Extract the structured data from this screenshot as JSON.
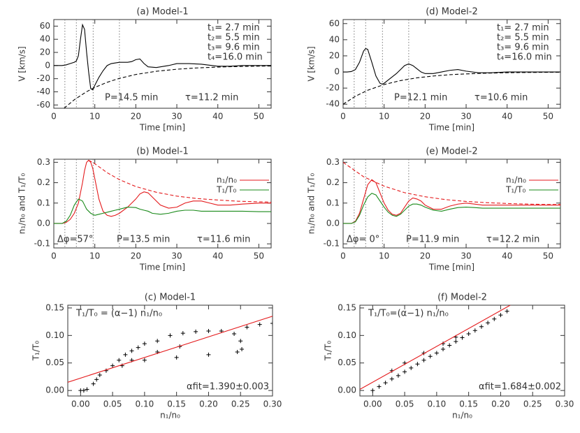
{
  "chart_data": [
    {
      "type": "line",
      "title": "(a) Model-1",
      "xlabel": "Time [min]",
      "ylabel": "V [km/s]",
      "xlim": [
        0,
        53
      ],
      "ylim": [
        -65,
        70
      ],
      "xticks": [
        0,
        10,
        20,
        30,
        40,
        50
      ],
      "yticks": [
        -60,
        -40,
        -20,
        0,
        20,
        40,
        60
      ],
      "markers": [
        2.7,
        5.5,
        9.6,
        16.0
      ],
      "series": [
        {
          "color": "#000000",
          "dash": false,
          "x": [
            0,
            1,
            2,
            3,
            4,
            5,
            5.5,
            6,
            6.5,
            7,
            7.5,
            8,
            8.5,
            9,
            9.5,
            10,
            11,
            12,
            13,
            14,
            16,
            18,
            19,
            20,
            21,
            22,
            23,
            25,
            28,
            30,
            33,
            36,
            40,
            43,
            46,
            50,
            53
          ],
          "values": [
            0,
            0,
            0,
            1,
            3,
            5,
            7,
            15,
            40,
            62,
            55,
            20,
            -10,
            -35,
            -37,
            -30,
            -18,
            -8,
            0,
            3,
            5,
            5,
            6,
            9,
            10,
            3,
            -2,
            -3,
            0,
            3,
            3,
            2,
            -1,
            -1,
            0,
            0,
            0
          ]
        },
        {
          "color": "#000000",
          "dash": true,
          "x": [
            2.5,
            5,
            8,
            10,
            13,
            16,
            20,
            25,
            30,
            35,
            40,
            45,
            50,
            53
          ],
          "values": [
            -65,
            -52,
            -39.8,
            -33.3,
            -25.5,
            -19.5,
            -13.6,
            -8.7,
            -5.6,
            -3.6,
            -2.3,
            -1.5,
            -0.9,
            -0.7
          ]
        }
      ],
      "annotations": [
        "t₁= 2.7 min",
        "t₂= 5.5 min",
        "t₃= 9.6 min",
        "t₄=16.0 min",
        "P=14.5 min",
        "τ=11.2 min"
      ]
    },
    {
      "type": "line",
      "title": "(b) Model-1",
      "xlabel": "Time [min]",
      "ylabel": "n₁/n₀ and T₁/T₀",
      "xlim": [
        0,
        53
      ],
      "ylim": [
        -0.12,
        0.315
      ],
      "xticks": [
        0,
        10,
        20,
        30,
        40,
        50
      ],
      "yticks": [
        -0.1,
        {
          "value": 0,
          "label": "0.0"
        },
        0.1,
        0.2,
        0.3
      ],
      "markers": [
        2.7,
        5.5,
        9.6,
        16.0
      ],
      "legend": "top-right",
      "x": [
        0,
        2,
        3,
        4,
        5,
        6,
        7,
        7.5,
        8,
        8.5,
        9,
        9.5,
        10,
        11,
        12,
        13,
        14,
        15,
        16,
        18,
        20,
        21,
        22,
        23,
        24,
        26,
        28,
        30,
        32,
        34,
        36,
        38,
        40,
        43,
        46,
        50,
        53
      ],
      "series": [
        {
          "name": "n₁/n₀",
          "color": "#e41a1c",
          "dash": false,
          "values": [
            0,
            0,
            0.005,
            0.02,
            0.05,
            0.1,
            0.2,
            0.26,
            0.3,
            0.31,
            0.3,
            0.27,
            0.22,
            0.12,
            0.06,
            0.04,
            0.035,
            0.04,
            0.05,
            0.08,
            0.12,
            0.145,
            0.155,
            0.15,
            0.13,
            0.09,
            0.075,
            0.08,
            0.1,
            0.11,
            0.11,
            0.1,
            0.09,
            0.09,
            0.095,
            0.1,
            0.1
          ]
        },
        {
          "name": "T₁/T₀",
          "color": "#1a8a1a",
          "dash": false,
          "values": [
            0,
            0,
            0.01,
            0.04,
            0.09,
            0.12,
            0.11,
            0.09,
            0.07,
            0.06,
            0.05,
            0.045,
            0.04,
            0.045,
            0.05,
            0.055,
            0.06,
            0.065,
            0.07,
            0.08,
            0.078,
            0.07,
            0.065,
            0.06,
            0.05,
            0.045,
            0.05,
            0.06,
            0.065,
            0.065,
            0.06,
            0.06,
            0.06,
            0.06,
            0.06,
            0.058,
            0.058
          ]
        },
        {
          "color": "#e41a1c",
          "dash": true,
          "x": [
            8.5,
            10,
            13,
            16,
            20,
            25,
            30,
            35,
            40,
            45,
            50,
            53
          ],
          "values": [
            0.31,
            0.293,
            0.249,
            0.215,
            0.181,
            0.153,
            0.134,
            0.122,
            0.115,
            0.109,
            0.106,
            0.105
          ]
        }
      ],
      "annotations": [
        "Δφ=57°",
        "P=13.5 min",
        "τ=11.6 min"
      ]
    },
    {
      "type": "scatter",
      "title": "(c) Model-1",
      "xlabel": "n₁/n₀",
      "ylabel": "T₁/T₀",
      "xlim": [
        -0.02,
        0.3
      ],
      "ylim": [
        -0.01,
        0.155
      ],
      "xticks": [
        {
          "value": 0,
          "label": "0.00"
        },
        0.05,
        {
          "value": 0.1,
          "label": "0.10"
        },
        0.15,
        {
          "value": 0.2,
          "label": "0.20"
        },
        0.25,
        {
          "value": 0.3,
          "label": "0.30"
        }
      ],
      "yticks": [
        {
          "value": 0,
          "label": "0.00"
        },
        0.05,
        {
          "value": 0.1,
          "label": "0.10"
        },
        0.15
      ],
      "series": [
        {
          "color": "#000000",
          "mark": "plus",
          "x": [
            0,
            0.005,
            0.01,
            0.02,
            0.025,
            0.03,
            0.04,
            0.05,
            0.06,
            0.07,
            0.08,
            0.09,
            0.1,
            0.12,
            0.14,
            0.16,
            0.18,
            0.2,
            0.22,
            0.24,
            0.25,
            0.252,
            0.245,
            0.2,
            0.15,
            0.1,
            0.065,
            0.08,
            0.12,
            0.155,
            0.26,
            0.28,
            0.3
          ],
          "values": [
            0,
            0,
            0.002,
            0.012,
            0.02,
            0.028,
            0.036,
            0.045,
            0.055,
            0.065,
            0.072,
            0.078,
            0.085,
            0.09,
            0.1,
            0.104,
            0.107,
            0.108,
            0.108,
            0.103,
            0.09,
            0.075,
            0.07,
            0.065,
            0.06,
            0.055,
            0.045,
            0.055,
            0.07,
            0.08,
            0.115,
            0.12,
            0.122
          ]
        },
        {
          "color": "#e41a1c",
          "mark": "line",
          "x": [
            -0.02,
            0.3
          ],
          "values": [
            0.015,
            0.135
          ]
        }
      ],
      "annotations": [
        "T₁/T₀ = (α−1) n₁/n₀",
        "αfit=1.390±0.003"
      ]
    },
    {
      "type": "line",
      "title": "(d) Model-2",
      "xlabel": "Time [min]",
      "ylabel": "V [km/s]",
      "xlim": [
        0,
        53
      ],
      "ylim": [
        -45,
        65
      ],
      "xticks": [
        0,
        10,
        20,
        30,
        40,
        50
      ],
      "yticks": [
        -40,
        -20,
        0,
        20,
        40,
        60
      ],
      "markers": [
        2.7,
        5.5,
        9.6,
        16.0
      ],
      "series": [
        {
          "color": "#000000",
          "dash": false,
          "x": [
            0,
            1,
            2,
            3,
            4,
            5,
            5.5,
            6,
            7,
            8,
            9,
            9.5,
            10,
            11,
            12,
            13,
            14,
            15,
            16,
            17,
            18,
            19,
            20,
            22,
            24,
            26,
            28,
            30,
            33,
            36,
            40,
            45,
            50,
            53
          ],
          "values": [
            0,
            0,
            0.5,
            3,
            12,
            26,
            29,
            28,
            12,
            -5,
            -14,
            -15,
            -14,
            -10,
            -6,
            -2,
            3,
            8,
            10,
            8,
            4,
            0,
            -2,
            -2,
            0,
            2,
            3,
            1,
            -1,
            -1,
            0,
            0,
            0,
            0
          ]
        },
        {
          "color": "#000000",
          "dash": true,
          "x": [
            0,
            3,
            6,
            10,
            14,
            18,
            22,
            26,
            30,
            35,
            40,
            45,
            50,
            53
          ],
          "values": [
            -40,
            -30.1,
            -22.7,
            -15.6,
            -10.7,
            -7.3,
            -5,
            -3.4,
            -2.4,
            -1.5,
            -0.9,
            -0.6,
            -0.4,
            -0.3
          ]
        }
      ],
      "annotations": [
        "t₁= 2.7 min",
        "t₂= 5.5 min",
        "t₃= 9.6 min",
        "t₄=16.0 min",
        "P=12.1 min",
        "τ=10.6 min"
      ]
    },
    {
      "type": "line",
      "title": "(e) Model-2",
      "xlabel": "Time [min]",
      "ylabel": "n₁/n₀ and T₁/T₀",
      "xlim": [
        0,
        53
      ],
      "ylim": [
        -0.12,
        0.315
      ],
      "xticks": [
        0,
        10,
        20,
        30,
        40,
        50
      ],
      "yticks": [
        -0.1,
        {
          "value": 0,
          "label": "0.0"
        },
        0.1,
        0.2,
        0.3
      ],
      "markers": [
        2.7,
        5.5,
        9.6,
        16.0
      ],
      "legend": "top-right",
      "x": [
        0,
        2,
        3,
        4,
        5,
        6,
        7,
        8,
        9,
        10,
        11,
        12,
        13,
        14,
        15,
        16,
        17,
        18,
        19,
        20,
        22,
        24,
        26,
        28,
        30,
        32,
        34,
        36,
        40,
        45,
        50,
        53
      ],
      "series": [
        {
          "name": "n₁/n₀",
          "color": "#e41a1c",
          "dash": false,
          "values": [
            0,
            0,
            0.01,
            0.05,
            0.12,
            0.19,
            0.215,
            0.2,
            0.15,
            0.1,
            0.065,
            0.045,
            0.04,
            0.05,
            0.08,
            0.11,
            0.125,
            0.12,
            0.11,
            0.09,
            0.07,
            0.07,
            0.085,
            0.095,
            0.1,
            0.095,
            0.09,
            0.09,
            0.09,
            0.09,
            0.09,
            0.09
          ]
        },
        {
          "name": "T₁/T₀",
          "color": "#1a8a1a",
          "dash": false,
          "values": [
            0,
            0,
            0.008,
            0.04,
            0.09,
            0.13,
            0.148,
            0.14,
            0.11,
            0.08,
            0.055,
            0.04,
            0.035,
            0.045,
            0.065,
            0.085,
            0.095,
            0.095,
            0.09,
            0.08,
            0.065,
            0.06,
            0.07,
            0.078,
            0.08,
            0.078,
            0.075,
            0.075,
            0.075,
            0.075,
            0.075,
            0.075
          ]
        },
        {
          "color": "#e41a1c",
          "dash": true,
          "x": [
            0,
            5,
            10,
            15,
            20,
            25,
            30,
            35,
            40,
            45,
            50,
            53
          ],
          "values": [
            0.3,
            0.229,
            0.183,
            0.151,
            0.131,
            0.117,
            0.108,
            0.102,
            0.098,
            0.095,
            0.093,
            0.093
          ]
        }
      ],
      "annotations": [
        "Δφ= 0°",
        "P=11.9 min",
        "τ=12.2 min"
      ]
    },
    {
      "type": "scatter",
      "title": "(f) Model-2",
      "xlabel": "n₁/n₀",
      "ylabel": "T₁/T₀",
      "xlim": [
        -0.02,
        0.3
      ],
      "ylim": [
        -0.01,
        0.155
      ],
      "xticks": [
        {
          "value": 0,
          "label": "0.00"
        },
        0.05,
        {
          "value": 0.1,
          "label": "0.10"
        },
        0.15,
        {
          "value": 0.2,
          "label": "0.20"
        },
        0.25,
        {
          "value": 0.3,
          "label": "0.30"
        }
      ],
      "yticks": [
        {
          "value": 0,
          "label": "0.00"
        },
        0.05,
        {
          "value": 0.1,
          "label": "0.10"
        },
        0.15
      ],
      "series": [
        {
          "color": "#000000",
          "mark": "plus",
          "x": [
            0,
            0.01,
            0.02,
            0.03,
            0.04,
            0.05,
            0.06,
            0.07,
            0.08,
            0.09,
            0.1,
            0.11,
            0.12,
            0.13,
            0.14,
            0.15,
            0.16,
            0.17,
            0.18,
            0.19,
            0.2,
            0.21,
            0.03,
            0.05,
            0.08,
            0.11,
            0.13
          ],
          "values": [
            0,
            0.007,
            0.014,
            0.021,
            0.027,
            0.034,
            0.041,
            0.048,
            0.055,
            0.062,
            0.068,
            0.075,
            0.082,
            0.089,
            0.096,
            0.103,
            0.109,
            0.116,
            0.123,
            0.13,
            0.137,
            0.144,
            0.036,
            0.05,
            0.068,
            0.085,
            0.097
          ]
        },
        {
          "color": "#e41a1c",
          "mark": "line",
          "x": [
            -0.02,
            0.215
          ],
          "values": [
            0.002,
            0.155
          ]
        }
      ],
      "annotations": [
        "T₁/T₀=(α−1) n₁/n₀",
        "αfit=1.684±0.002"
      ]
    }
  ]
}
